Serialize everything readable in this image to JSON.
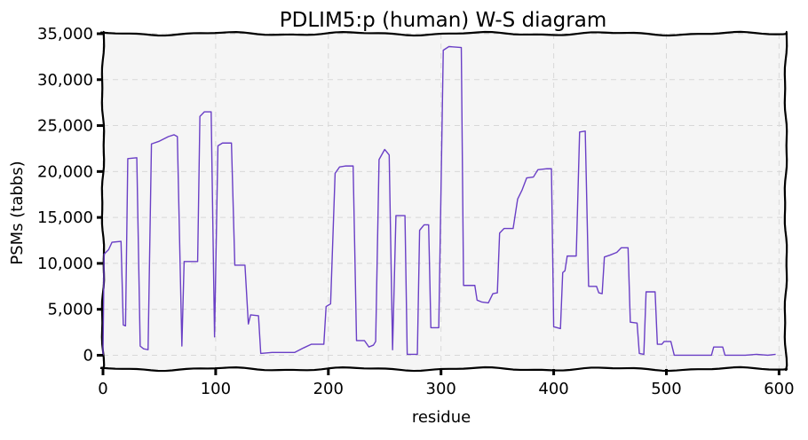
{
  "chart_data": {
    "type": "line",
    "title": "PDLIM5:p (human) W-S diagram",
    "xlabel": "residue",
    "ylabel": "PSMs (tabbs)",
    "xlim": [
      0,
      606
    ],
    "ylim": [
      -1500,
      35000
    ],
    "x_ticks": [
      0,
      100,
      200,
      300,
      400,
      500,
      600
    ],
    "y_ticks": [
      0,
      5000,
      10000,
      15000,
      20000,
      25000,
      30000,
      35000
    ],
    "x_tick_labels": [
      "0",
      "100",
      "200",
      "300",
      "400",
      "500",
      "600"
    ],
    "y_tick_labels": [
      "0",
      "5,000",
      "10,000",
      "15,000",
      "20,000",
      "25,000",
      "30,000",
      "35,000"
    ],
    "grid": true,
    "series": [
      {
        "color": "#6a3fc6",
        "points": [
          [
            0,
            0
          ],
          [
            1,
            11000
          ],
          [
            5,
            11500
          ],
          [
            8,
            12300
          ],
          [
            16,
            12400
          ],
          [
            18,
            3300
          ],
          [
            20,
            3200
          ],
          [
            22,
            21400
          ],
          [
            30,
            21500
          ],
          [
            33,
            1000
          ],
          [
            36,
            700
          ],
          [
            40,
            600
          ],
          [
            43,
            23000
          ],
          [
            50,
            23300
          ],
          [
            58,
            23800
          ],
          [
            63,
            24000
          ],
          [
            66,
            23800
          ],
          [
            70,
            1000
          ],
          [
            72,
            10200
          ],
          [
            84,
            10200
          ],
          [
            86,
            26000
          ],
          [
            90,
            26500
          ],
          [
            96,
            26500
          ],
          [
            99,
            2000
          ],
          [
            102,
            22800
          ],
          [
            106,
            23100
          ],
          [
            114,
            23100
          ],
          [
            117,
            9800
          ],
          [
            126,
            9800
          ],
          [
            129,
            3400
          ],
          [
            131,
            4400
          ],
          [
            138,
            4300
          ],
          [
            140,
            200
          ],
          [
            150,
            300
          ],
          [
            170,
            300
          ],
          [
            178,
            800
          ],
          [
            185,
            1200
          ],
          [
            196,
            1200
          ],
          [
            198,
            5300
          ],
          [
            202,
            5600
          ],
          [
            206,
            19800
          ],
          [
            210,
            20500
          ],
          [
            215,
            20600
          ],
          [
            222,
            20600
          ],
          [
            225,
            1600
          ],
          [
            232,
            1600
          ],
          [
            236,
            900
          ],
          [
            240,
            1100
          ],
          [
            242,
            1500
          ],
          [
            245,
            21300
          ],
          [
            250,
            22400
          ],
          [
            254,
            21800
          ],
          [
            257,
            600
          ],
          [
            260,
            15200
          ],
          [
            268,
            15200
          ],
          [
            270,
            100
          ],
          [
            279,
            100
          ],
          [
            281,
            13600
          ],
          [
            285,
            14200
          ],
          [
            289,
            14200
          ],
          [
            291,
            3000
          ],
          [
            298,
            3000
          ],
          [
            302,
            33200
          ],
          [
            307,
            33600
          ],
          [
            318,
            33500
          ],
          [
            320,
            7600
          ],
          [
            330,
            7600
          ],
          [
            332,
            6000
          ],
          [
            336,
            5800
          ],
          [
            342,
            5700
          ],
          [
            346,
            6700
          ],
          [
            350,
            6800
          ],
          [
            352,
            13300
          ],
          [
            356,
            13800
          ],
          [
            364,
            13800
          ],
          [
            368,
            17000
          ],
          [
            372,
            18000
          ],
          [
            376,
            19300
          ],
          [
            382,
            19400
          ],
          [
            386,
            20200
          ],
          [
            394,
            20300
          ],
          [
            398,
            20300
          ],
          [
            400,
            3100
          ],
          [
            406,
            2900
          ],
          [
            408,
            9000
          ],
          [
            410,
            9200
          ],
          [
            412,
            10800
          ],
          [
            420,
            10800
          ],
          [
            423,
            24300
          ],
          [
            428,
            24400
          ],
          [
            431,
            7500
          ],
          [
            438,
            7500
          ],
          [
            440,
            6800
          ],
          [
            443,
            6700
          ],
          [
            445,
            10700
          ],
          [
            450,
            10900
          ],
          [
            456,
            11200
          ],
          [
            460,
            11700
          ],
          [
            466,
            11700
          ],
          [
            468,
            3600
          ],
          [
            474,
            3500
          ],
          [
            476,
            200
          ],
          [
            480,
            100
          ],
          [
            482,
            6900
          ],
          [
            490,
            6900
          ],
          [
            492,
            1200
          ],
          [
            496,
            1200
          ],
          [
            498,
            1500
          ],
          [
            504,
            1500
          ],
          [
            507,
            0
          ],
          [
            540,
            0
          ],
          [
            542,
            900
          ],
          [
            550,
            900
          ],
          [
            552,
            0
          ],
          [
            560,
            0
          ],
          [
            570,
            0
          ],
          [
            580,
            100
          ],
          [
            590,
            0
          ],
          [
            597,
            100
          ]
        ]
      }
    ]
  }
}
